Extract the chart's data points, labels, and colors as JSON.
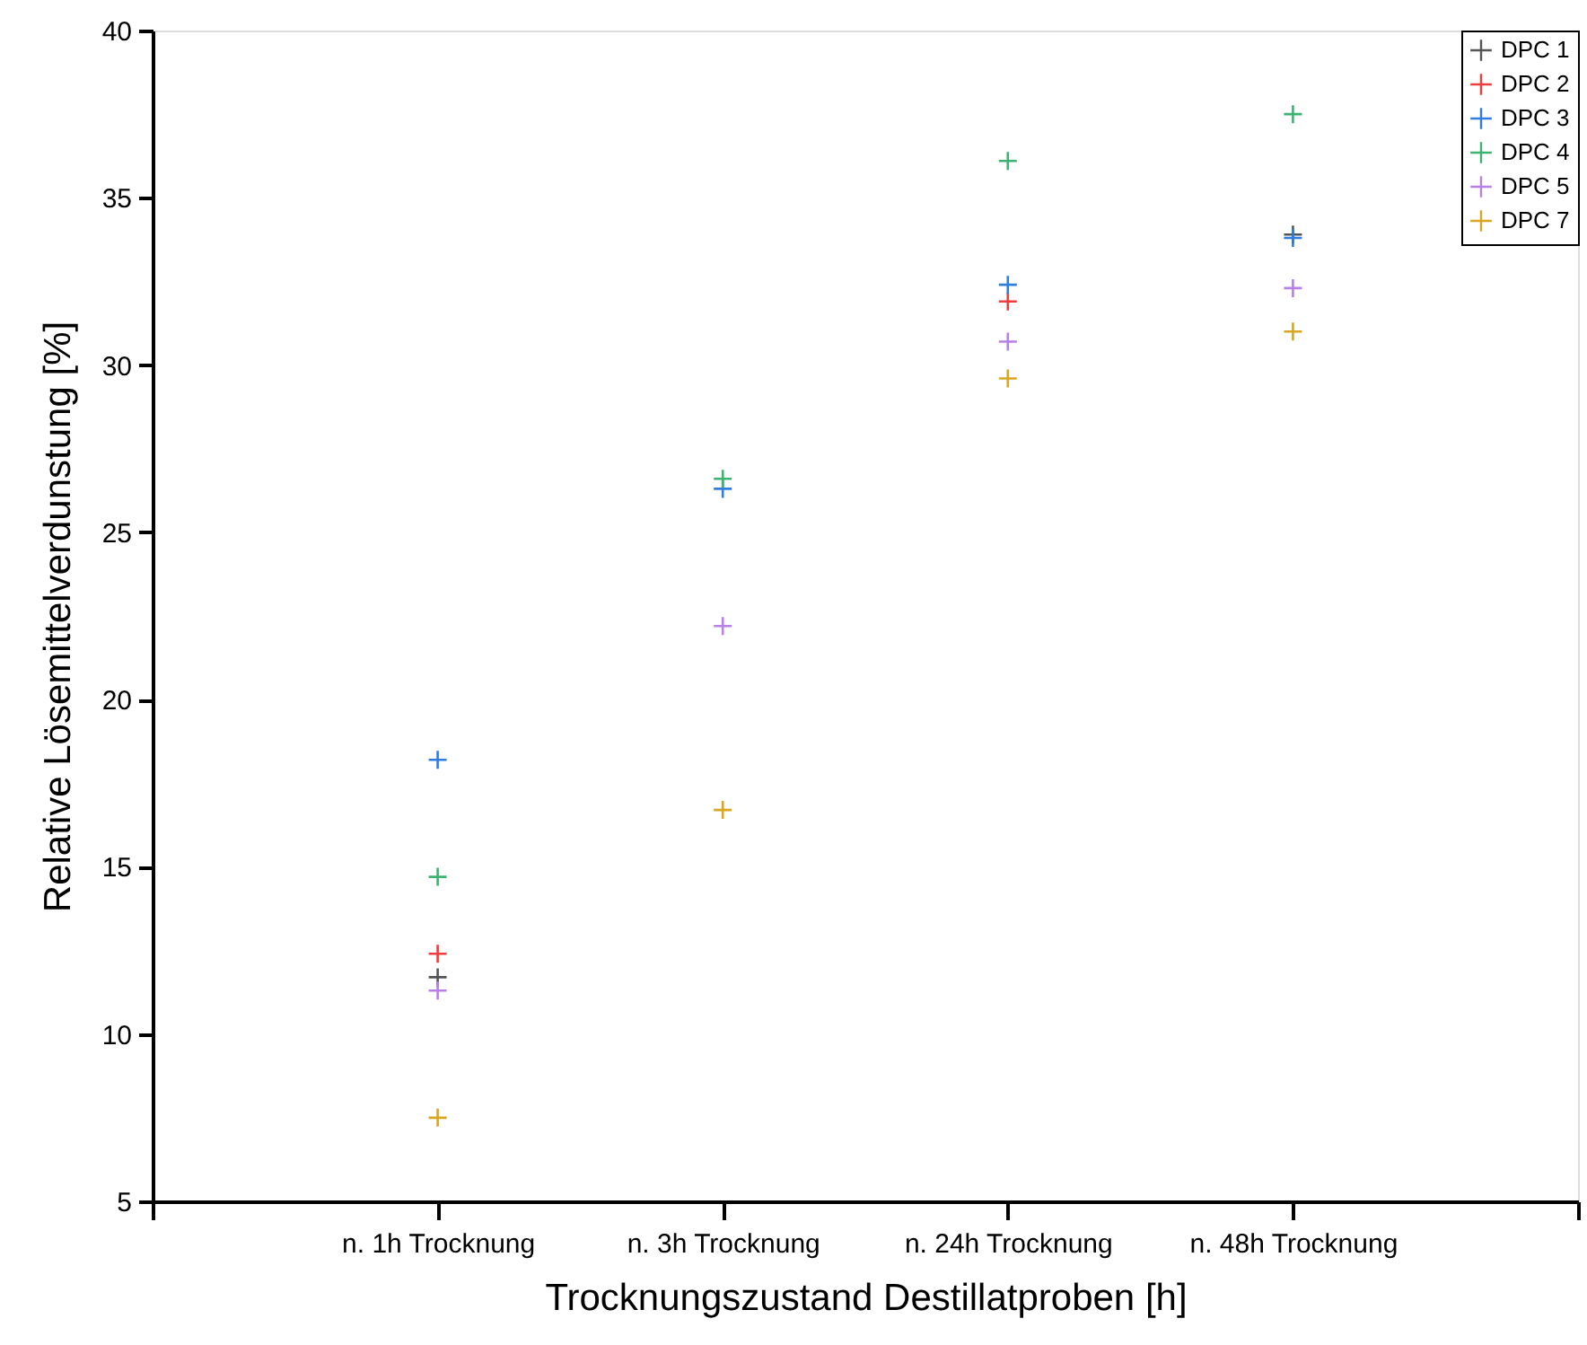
{
  "chart_data": {
    "type": "scatter",
    "xlabel": "Trocknungszustand Destillatproben [h]",
    "ylabel": "Relative Lösemittelverdunstung [%]",
    "categories": [
      "n. 1h Trocknung",
      "n. 3h Trocknung",
      "n. 24h Trocknung",
      "n. 48h Trocknung"
    ],
    "series": [
      {
        "name": "DPC 1",
        "color": "#555555",
        "values": [
          11.7,
          null,
          null,
          33.9
        ]
      },
      {
        "name": "DPC 2",
        "color": "#f03c3c",
        "values": [
          12.4,
          null,
          31.9,
          null
        ]
      },
      {
        "name": "DPC 3",
        "color": "#2f7de1",
        "values": [
          18.2,
          26.3,
          32.4,
          33.8
        ]
      },
      {
        "name": "DPC 4",
        "color": "#3cb371",
        "values": [
          14.7,
          26.6,
          36.1,
          37.5
        ]
      },
      {
        "name": "DPC 5",
        "color": "#b77fe8",
        "values": [
          11.3,
          22.2,
          30.7,
          32.3
        ]
      },
      {
        "name": "DPC 7",
        "color": "#daa520",
        "values": [
          7.5,
          16.7,
          29.6,
          31.0
        ]
      }
    ],
    "ylim": [
      5,
      40
    ],
    "yticks": [
      5,
      10,
      15,
      20,
      25,
      30,
      35,
      40
    ],
    "marker": "cross",
    "grid": false,
    "legend": "top right"
  }
}
